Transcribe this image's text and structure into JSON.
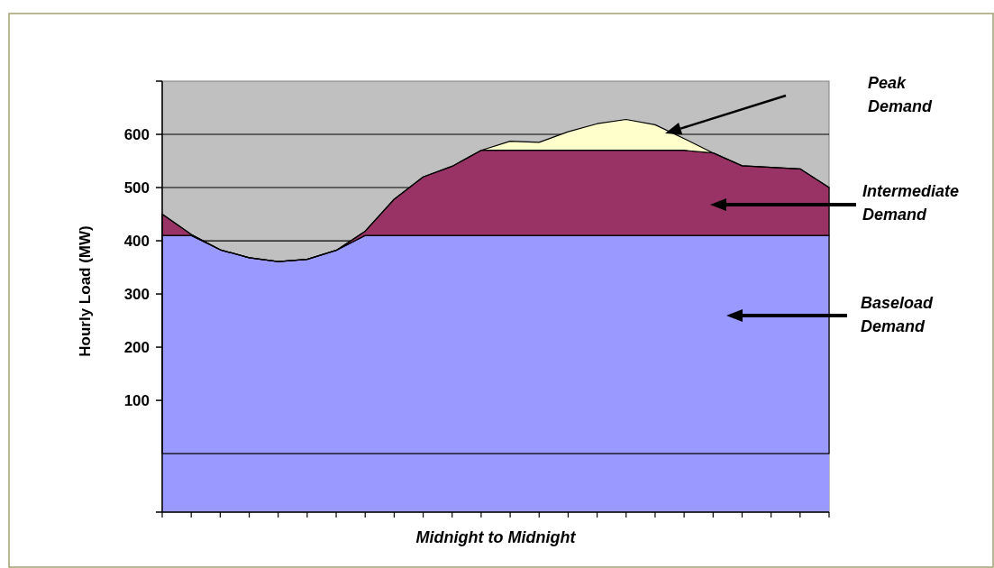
{
  "chart_data": {
    "type": "area",
    "stacked": true,
    "xlabel": "Midnight to Midnight",
    "ylabel": "Hourly Load (MW)",
    "categories": [
      null,
      null,
      null,
      null,
      null,
      null,
      null,
      null,
      null,
      null,
      null,
      null,
      null,
      null,
      null,
      null,
      null,
      null,
      null,
      null,
      null,
      null,
      null,
      null
    ],
    "series": [
      {
        "color": "#9999ff",
        "values": [
          410,
          410,
          383,
          368,
          361,
          365,
          382,
          410,
          410,
          410,
          410,
          410,
          410,
          410,
          410,
          410,
          410,
          410,
          410,
          410,
          410,
          410,
          410,
          410
        ]
      },
      {
        "color": "#993366",
        "values": [
          40,
          2,
          0,
          0,
          0,
          0,
          0,
          8,
          68,
          110,
          130,
          160,
          160,
          160,
          160,
          160,
          160,
          160,
          160,
          155,
          131,
          128,
          125,
          90
        ]
      },
      {
        "color": "#ffffcc",
        "values": [
          0,
          0,
          0,
          0,
          0,
          0,
          0,
          0,
          0,
          0,
          0,
          0,
          17,
          15,
          35,
          50,
          58,
          48,
          22,
          0,
          0,
          0,
          0,
          0
        ]
      }
    ],
    "ylim": [
      -110,
      700
    ],
    "yticks": [
      {
        "value": -110,
        "label": null
      },
      100,
      200,
      300,
      400,
      500,
      600,
      {
        "value": 700,
        "label": null
      }
    ],
    "grid": "y",
    "annotations": [
      "Peak Demand",
      "Intermediate Demand",
      "Baseload Demand"
    ]
  }
}
